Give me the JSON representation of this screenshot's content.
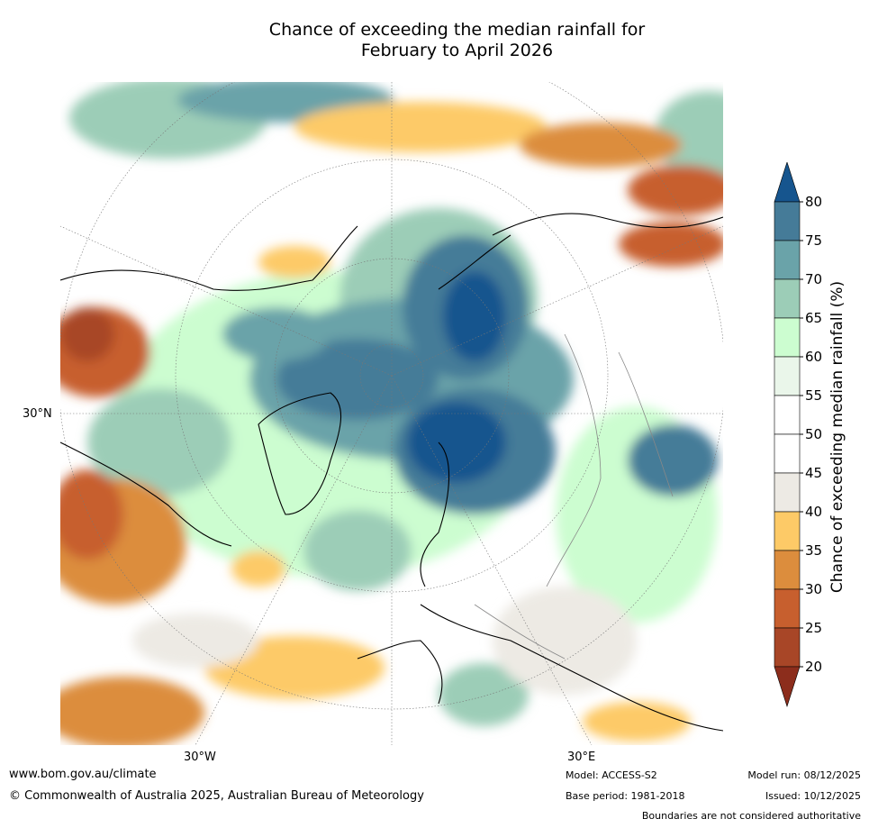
{
  "title_line1": "Chance of exceeding the median rainfall for",
  "title_line2": "February to April 2026",
  "map": {
    "lon_labels": [
      "30°W",
      "30°E"
    ],
    "lat_label": "30°N"
  },
  "colorbar": {
    "label": "Chance of exceeding median rainfall (%)",
    "ticks": [
      "80",
      "75",
      "70",
      "65",
      "60",
      "55",
      "50",
      "45",
      "40",
      "35",
      "30",
      "25",
      "20"
    ],
    "bands": [
      {
        "range": ">80",
        "color": "#16558e"
      },
      {
        "range": "75-80",
        "color": "#457b98"
      },
      {
        "range": "70-75",
        "color": "#6aa3a9"
      },
      {
        "range": "65-70",
        "color": "#9ccdb7"
      },
      {
        "range": "60-65",
        "color": "#ccfdd0"
      },
      {
        "range": "55-60",
        "color": "#eaf6ea"
      },
      {
        "range": "50-55",
        "color": "#ffffff"
      },
      {
        "range": "45-50",
        "color": "#ffffff"
      },
      {
        "range": "40-45",
        "color": "#edeae4"
      },
      {
        "range": "35-40",
        "color": "#fdca67"
      },
      {
        "range": "30-35",
        "color": "#dc8d3d"
      },
      {
        "range": "25-30",
        "color": "#c75f2e"
      },
      {
        "range": "20-25",
        "color": "#a84627"
      },
      {
        "range": "<20",
        "color": "#8c2d1c"
      }
    ]
  },
  "footer": {
    "url": "www.bom.gov.au/climate",
    "copyright": "© Commonwealth of Australia 2025, Australian Bureau of Meteorology",
    "model": "Model: ACCESS-S2",
    "base_period": "Base period: 1981-2018",
    "model_run": "Model run: 08/12/2025",
    "issued": "Issued: 10/12/2025",
    "disclaimer": "Boundaries are not considered authoritative"
  }
}
